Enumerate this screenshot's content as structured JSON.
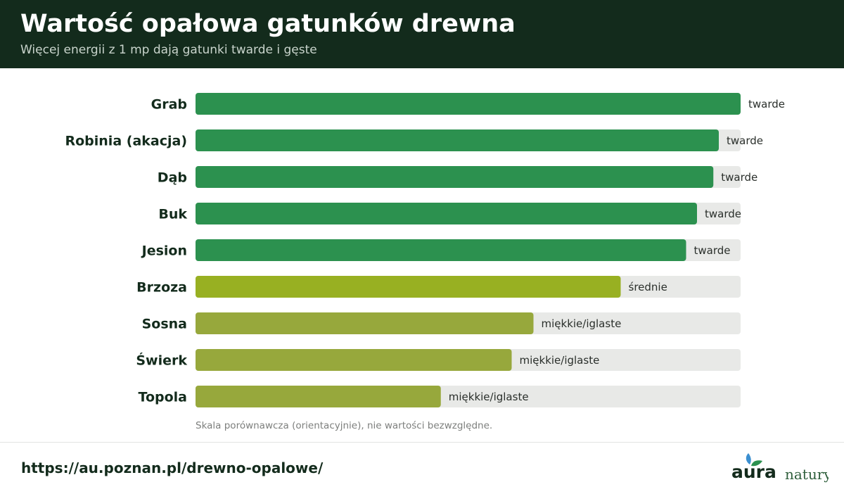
{
  "header": {
    "title": "Wartość opałowa gatunków drewna",
    "subtitle": "Więcej energii z 1 mp dają gatunki twarde i gęste"
  },
  "chart_data": {
    "type": "bar",
    "orientation": "horizontal",
    "title": "Wartość opałowa gatunków drewna",
    "subtitle": "Więcej energii z 1 mp dają gatunki twarde i gęste",
    "categories": [
      "Grab",
      "Robinia (akacja)",
      "Dąb",
      "Buk",
      "Jesion",
      "Brzoza",
      "Sosna",
      "Świerk",
      "Topola"
    ],
    "values": [
      100,
      96,
      95,
      92,
      90,
      78,
      62,
      58,
      45
    ],
    "labels": [
      "twarde",
      "twarde",
      "twarde",
      "twarde",
      "twarde",
      "średnie",
      "miękkie/iglaste",
      "miękkie/iglaste",
      "miękkie/iglaste"
    ],
    "xlim": [
      0,
      100
    ],
    "grid": false,
    "note": "Skala porównawcza (orientacyjnie), nie wartości bezwzględne.",
    "colors": {
      "twarde": "#2c914f",
      "średnie": "#98b022",
      "miękkie/iglaste": "#97a83c",
      "track": "#e8e9e7"
    }
  },
  "footer": {
    "url": "https://au.poznan.pl/drewno-opalowe/",
    "logo_text": "aura",
    "logo_text2": "natury"
  }
}
